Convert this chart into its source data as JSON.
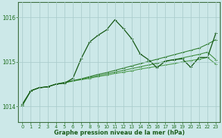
{
  "background_color": "#cce8e8",
  "grid_color": "#aacccc",
  "x_ticks": [
    0,
    1,
    2,
    3,
    4,
    5,
    6,
    7,
    8,
    9,
    10,
    11,
    12,
    13,
    14,
    15,
    16,
    17,
    18,
    19,
    20,
    21,
    22,
    23
  ],
  "y_ticks": [
    1014,
    1015,
    1016
  ],
  "ylim": [
    1013.65,
    1016.35
  ],
  "xlim": [
    -0.5,
    23.5
  ],
  "xlabel": "Graphe pression niveau de la mer (hPa)",
  "line_dark": "#1a5c1a",
  "line_mid": "#2d7a2d",
  "line_light": "#3d8a3d",
  "line_lighter": "#4a9a4a",
  "series": [
    {
      "name": "line_bottom",
      "x": [
        0,
        1,
        2,
        3,
        4,
        5,
        6,
        7,
        8,
        9,
        10,
        11,
        12,
        13,
        14,
        15,
        16,
        17,
        18,
        19,
        20,
        21,
        22,
        23
      ],
      "y": [
        1014.02,
        1014.35,
        1014.42,
        1014.44,
        1014.5,
        1014.53,
        1014.57,
        1014.6,
        1014.63,
        1014.67,
        1014.7,
        1014.74,
        1014.77,
        1014.8,
        1014.84,
        1014.87,
        1014.9,
        1014.93,
        1014.96,
        1015.0,
        1015.03,
        1015.06,
        1015.1,
        1014.95
      ],
      "color": "#3a7a3a",
      "lw": 0.8
    },
    {
      "name": "line_mid1",
      "x": [
        0,
        1,
        2,
        3,
        4,
        5,
        6,
        7,
        8,
        9,
        10,
        11,
        12,
        13,
        14,
        15,
        16,
        17,
        18,
        19,
        20,
        21,
        22,
        23
      ],
      "y": [
        1014.02,
        1014.35,
        1014.42,
        1014.44,
        1014.5,
        1014.53,
        1014.57,
        1014.61,
        1014.65,
        1014.69,
        1014.73,
        1014.77,
        1014.81,
        1014.85,
        1014.89,
        1014.93,
        1014.97,
        1015.01,
        1015.05,
        1015.09,
        1015.13,
        1015.17,
        1015.22,
        1015.05
      ],
      "color": "#2d7a2d",
      "lw": 0.8
    },
    {
      "name": "line_mid2",
      "x": [
        0,
        1,
        2,
        3,
        4,
        5,
        6,
        7,
        8,
        9,
        10,
        11,
        12,
        13,
        14,
        15,
        16,
        17,
        18,
        19,
        20,
        21,
        22,
        23
      ],
      "y": [
        1014.02,
        1014.35,
        1014.42,
        1014.44,
        1014.5,
        1014.54,
        1014.58,
        1014.62,
        1014.67,
        1014.72,
        1014.76,
        1014.81,
        1014.86,
        1014.91,
        1014.96,
        1015.01,
        1015.06,
        1015.11,
        1015.16,
        1015.21,
        1015.26,
        1015.31,
        1015.4,
        1015.5
      ],
      "color": "#1a5c1a",
      "lw": 0.8
    },
    {
      "name": "line_main_peak",
      "x": [
        0,
        1,
        2,
        3,
        4,
        5,
        6,
        7,
        8,
        9,
        10,
        11,
        12,
        13,
        14,
        15,
        16,
        17,
        18,
        19,
        20,
        21,
        22,
        23
      ],
      "y": [
        1014.05,
        1014.35,
        1014.42,
        1014.44,
        1014.5,
        1014.52,
        1014.63,
        1015.08,
        1015.45,
        1015.6,
        1015.72,
        1015.95,
        1015.75,
        1015.52,
        1015.18,
        1015.05,
        1014.87,
        1015.02,
        1015.05,
        1015.07,
        1014.88,
        1015.1,
        1015.1,
        1015.65
      ],
      "color": "#1a5c1a",
      "lw": 1.0
    }
  ]
}
